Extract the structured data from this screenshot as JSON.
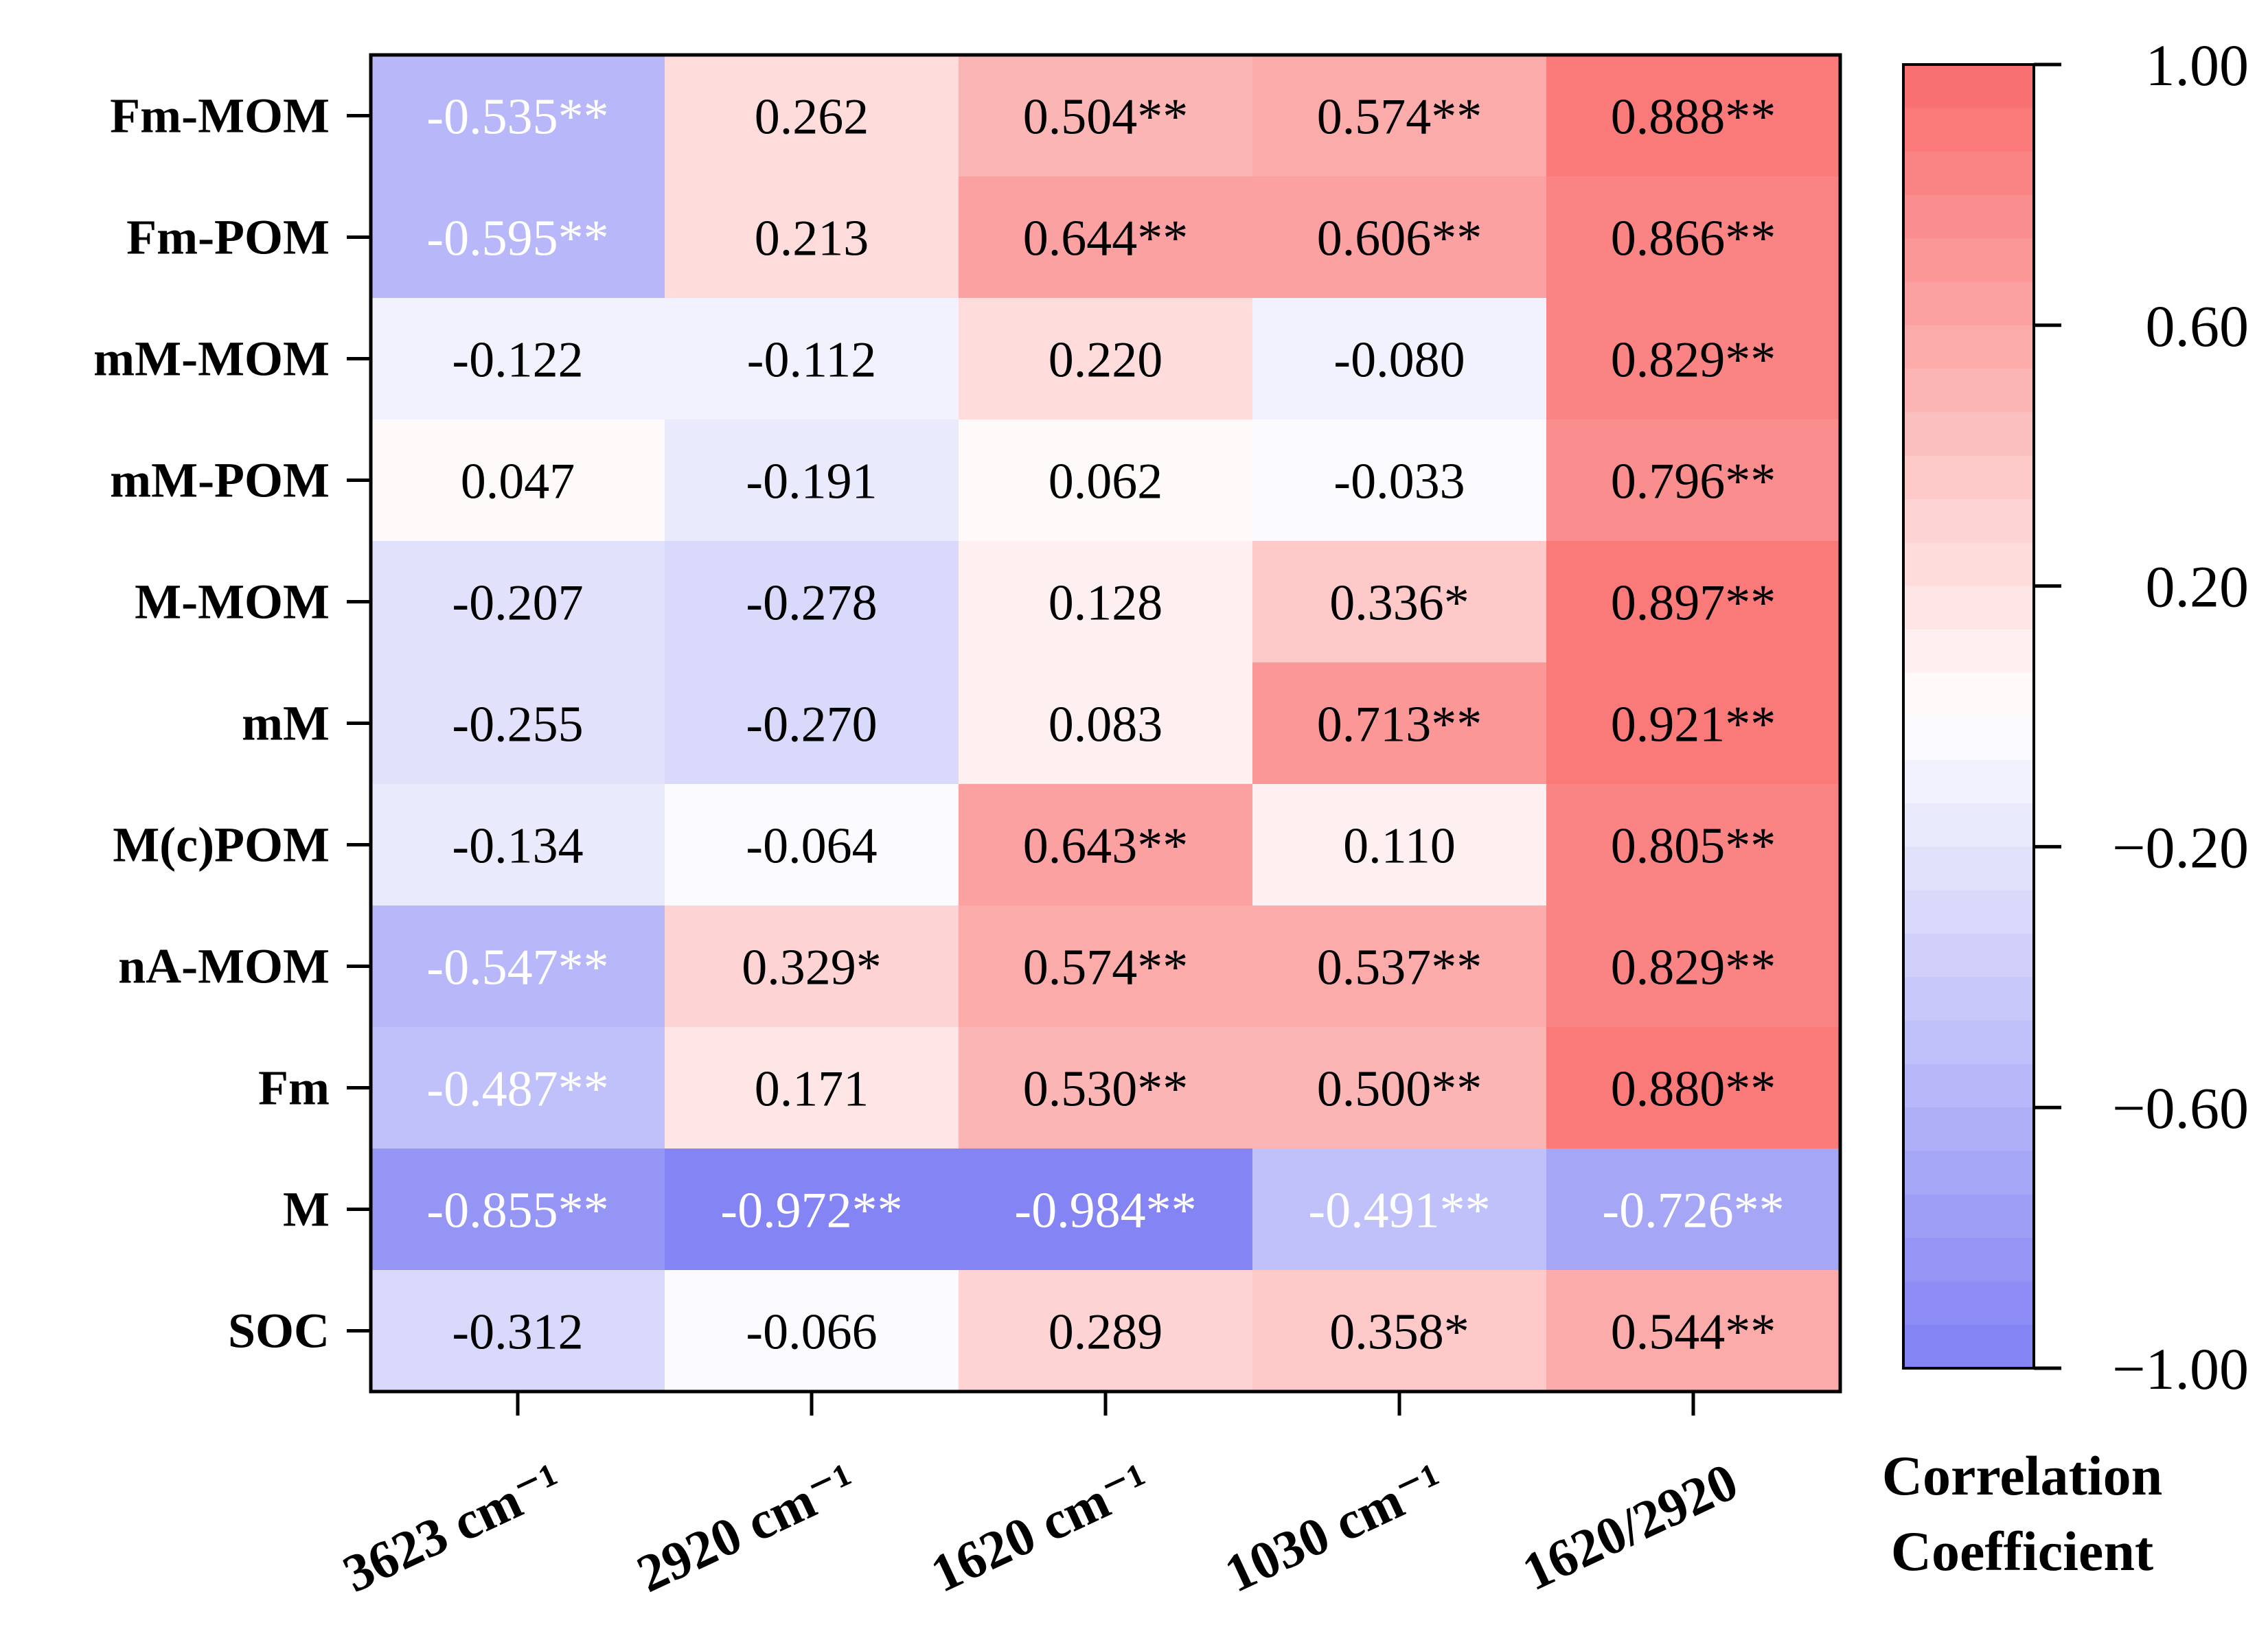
{
  "chart_data": {
    "type": "heatmap",
    "title": "",
    "rows": [
      "Fm-MOM",
      "Fm-POM",
      "mM-MOM",
      "mM-POM",
      "M-MOM",
      "mM",
      "M(c)POM",
      "nA-MOM",
      "Fm",
      "M",
      "SOC"
    ],
    "columns": [
      "3623 cm⁻¹",
      "2920 cm⁻¹",
      "1620 cm⁻¹",
      "1030 cm⁻¹",
      "1620/2920"
    ],
    "values": [
      [
        -0.535,
        0.262,
        0.504,
        0.574,
        0.888
      ],
      [
        -0.595,
        0.213,
        0.644,
        0.606,
        0.866
      ],
      [
        -0.122,
        -0.112,
        0.22,
        -0.08,
        0.829
      ],
      [
        0.047,
        -0.191,
        0.062,
        -0.033,
        0.796
      ],
      [
        -0.207,
        -0.278,
        0.128,
        0.336,
        0.897
      ],
      [
        -0.255,
        -0.27,
        0.083,
        0.713,
        0.921
      ],
      [
        -0.134,
        -0.064,
        0.643,
        0.11,
        0.805
      ],
      [
        -0.547,
        0.329,
        0.574,
        0.537,
        0.829
      ],
      [
        -0.487,
        0.171,
        0.53,
        0.5,
        0.88
      ],
      [
        -0.855,
        -0.972,
        -0.984,
        -0.491,
        -0.726
      ],
      [
        -0.312,
        -0.066,
        0.289,
        0.358,
        0.544
      ]
    ],
    "labels": [
      [
        "-0.535**",
        "0.262",
        "0.504**",
        "0.574**",
        "0.888**"
      ],
      [
        "-0.595**",
        "0.213",
        "0.644**",
        "0.606**",
        "0.866**"
      ],
      [
        "-0.122",
        "-0.112",
        "0.220",
        "-0.080",
        "0.829**"
      ],
      [
        "0.047",
        "-0.191",
        "0.062",
        "-0.033",
        "0.796**"
      ],
      [
        "-0.207",
        "-0.278",
        "0.128",
        "0.336*",
        "0.897**"
      ],
      [
        "-0.255",
        "-0.270",
        "0.083",
        "0.713**",
        "0.921**"
      ],
      [
        "-0.134",
        "-0.064",
        "0.643**",
        "0.110",
        "0.805**"
      ],
      [
        "-0.547**",
        "0.329*",
        "0.574**",
        "0.537**",
        "0.829**"
      ],
      [
        "-0.487**",
        "0.171",
        "0.530**",
        "0.500**",
        "0.880**"
      ],
      [
        "-0.855**",
        "-0.972**",
        "-0.984**",
        "-0.491**",
        "-0.726**"
      ],
      [
        "-0.312",
        "-0.066",
        "0.289",
        "0.358*",
        "0.544**"
      ]
    ],
    "colorbar": {
      "title_line1": "Correlation",
      "title_line2": "Coefficient",
      "range": [
        -1.0,
        1.0
      ],
      "ticks": [
        1.0,
        0.6,
        0.2,
        -0.2,
        -0.6,
        -1.0
      ],
      "tick_labels": [
        "1.00",
        "0.60",
        "0.20",
        "−0.20",
        "−0.60",
        "−1.00"
      ],
      "color_negative": "#8080f4",
      "color_zero": "#ffffff",
      "color_positive": "#f96b6b",
      "steps": 30
    },
    "text_color_dark": "#000000",
    "text_color_light": "#ffffff"
  }
}
